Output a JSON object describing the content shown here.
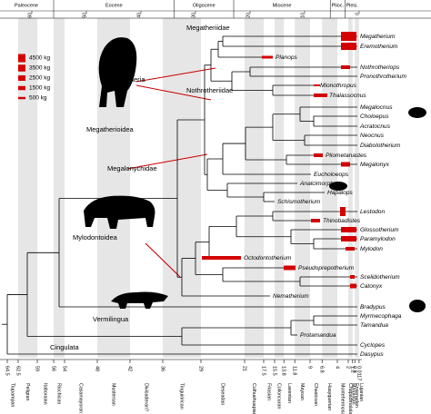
{
  "epochs": [
    "Paleocene",
    "Eocene",
    "Oligocene",
    "Miocene",
    "Plioc.",
    "Pleis."
  ],
  "top_ticks": [
    60,
    50,
    40,
    30,
    20,
    10,
    0
  ],
  "bottom_ticks": [
    64.5,
    62.5,
    59,
    56,
    54,
    48,
    42,
    36,
    29,
    21,
    17.5,
    15.5,
    13.8,
    11.8,
    9,
    6.8,
    4,
    2,
    1.2,
    0.8,
    0.0117
  ],
  "stages": [
    "Tiupampan",
    "Peligran",
    "Itaboraian",
    "Riochican",
    "Casamayoran",
    "Mustersan",
    "Divisaderan?",
    "Tinguirirican",
    "Deseadan",
    "Colhuehuapian",
    "Friasian",
    "Colloncuran",
    "Laventan",
    "Mayoan",
    "Chasicoan",
    "Huayquerian",
    "Montehermosan",
    "Chapadmalalan",
    "Marplatan",
    "Ensenadan",
    "Lujanian"
  ],
  "legend": [
    "4500 kg",
    "3500 kg",
    "2500 kg",
    "1500 kg",
    "500 kg"
  ],
  "taxa": [
    "Megatherium",
    "Eremotherium",
    "Planops",
    "Nothrotheriops",
    "Pronothrotherium",
    "Mionothropus",
    "Thalassocnus",
    "Megalocnus",
    "Choloepus",
    "Acratocnus",
    "Neocnus",
    "Diabolotherium",
    "Pliometanastes",
    "Megalonyx",
    "Eucholoeops",
    "Analcimorphus",
    "Hapalops",
    "Schismotherium",
    "Lestodon",
    "Thinobadistes",
    "Glossotherium",
    "Paramylodon",
    "Mylodon",
    "Octodontotherium",
    "Pseudoprepotherium",
    "Scelidotherium",
    "Catonyx",
    "Nematherium",
    "Bradypus",
    "Myrmecophaga",
    "Tamandua",
    "Protamandua",
    "Cyclopes",
    "Dasypus"
  ],
  "clades": [
    "Megatheriidae",
    "Nothrotheriidae",
    "Megatheria",
    "Megatherioidea",
    "Megalonychidae",
    "Mylodontoidea",
    "Vermilingua",
    "Cingulata"
  ]
}
